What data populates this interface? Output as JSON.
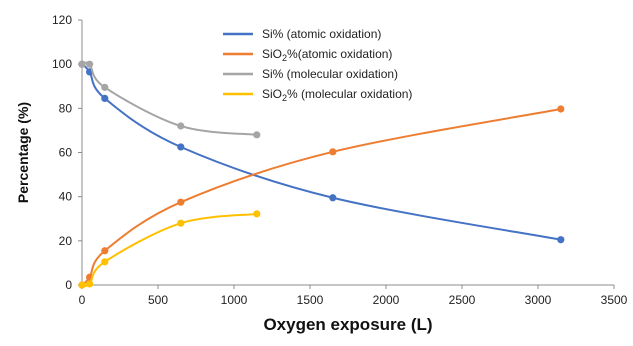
{
  "chart_data": {
    "type": "scatter",
    "title": "",
    "xlabel": "Oxygen exposure (L)",
    "ylabel": "Percentage (%)",
    "xlim": [
      0,
      3500
    ],
    "ylim": [
      0,
      120
    ],
    "xticks": [
      "0",
      "500",
      "1000",
      "1500",
      "2000",
      "2500",
      "3000",
      "3500"
    ],
    "yticks": [
      "0",
      "20",
      "40",
      "60",
      "80",
      "100",
      "120"
    ],
    "grid": false,
    "legend_position": "top-center",
    "series": [
      {
        "name": "Si% (atomic oxidation)",
        "legend": {
          "pre": "Si% (atomic oxidation)",
          "sub": "",
          "post": ""
        },
        "color": "#4472C4",
        "x": [
          0,
          50,
          150,
          650,
          1650,
          3150
        ],
        "y": [
          100,
          96.5,
          84.5,
          62.5,
          39.5,
          20.5
        ]
      },
      {
        "name": "SiO2%(atomic oxidation)",
        "legend": {
          "pre": "SiO",
          "sub": "2",
          "post": "%(atomic oxidation)"
        },
        "color": "#ED7D31",
        "x": [
          0,
          50,
          150,
          650,
          1650,
          3150
        ],
        "y": [
          0,
          3.5,
          15.5,
          37.5,
          60.3,
          79.7
        ]
      },
      {
        "name": "Si% (molecular oxidation)",
        "legend": {
          "pre": "Si% (molecular oxidation)",
          "sub": "",
          "post": ""
        },
        "color": "#A5A5A5",
        "x": [
          0,
          50,
          150,
          650,
          1150
        ],
        "y": [
          100,
          100,
          89.5,
          72,
          68
        ]
      },
      {
        "name": "SiO2% (molecular oxidation)",
        "legend": {
          "pre": "SiO",
          "sub": "2",
          "post": "% (molecular oxidation)"
        },
        "color": "#FFC000",
        "x": [
          0,
          50,
          150,
          650,
          1150
        ],
        "y": [
          0,
          0.5,
          10.5,
          28,
          32.2
        ]
      }
    ]
  }
}
